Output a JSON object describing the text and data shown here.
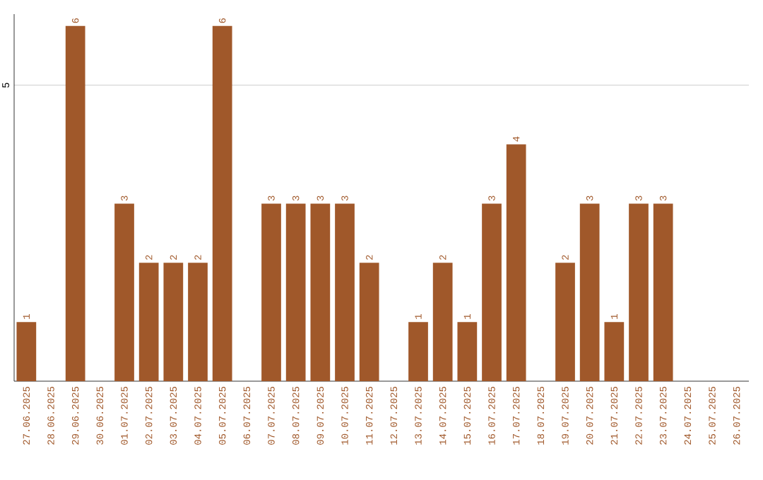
{
  "chart_data": {
    "type": "bar",
    "categories": [
      "27.06.2025",
      "28.06.2025",
      "29.06.2025",
      "30.06.2025",
      "01.07.2025",
      "02.07.2025",
      "03.07.2025",
      "04.07.2025",
      "05.07.2025",
      "06.07.2025",
      "07.07.2025",
      "08.07.2025",
      "09.07.2025",
      "10.07.2025",
      "11.07.2025",
      "12.07.2025",
      "13.07.2025",
      "14.07.2025",
      "15.07.2025",
      "16.07.2025",
      "17.07.2025",
      "18.07.2025",
      "19.07.2025",
      "20.07.2025",
      "21.07.2025",
      "22.07.2025",
      "23.07.2025",
      "24.07.2025",
      "25.07.2025",
      "26.07.2025"
    ],
    "values": [
      1,
      0,
      6,
      0,
      3,
      2,
      2,
      2,
      6,
      0,
      3,
      3,
      3,
      3,
      2,
      0,
      1,
      2,
      1,
      3,
      4,
      0,
      2,
      3,
      1,
      3,
      3,
      0,
      0,
      0
    ],
    "value_labels": [
      "1",
      null,
      "6",
      null,
      "3",
      "2",
      "2",
      "2",
      "6",
      null,
      "3",
      "3",
      "3",
      "3",
      "2",
      null,
      "1",
      "2",
      "1",
      "3",
      "4",
      null,
      "2",
      "3",
      "1",
      "3",
      "3",
      null,
      null,
      null
    ],
    "color": "#a0582a",
    "ylim": [
      0,
      6.2
    ],
    "yticks": [
      5
    ],
    "grid": "y"
  }
}
